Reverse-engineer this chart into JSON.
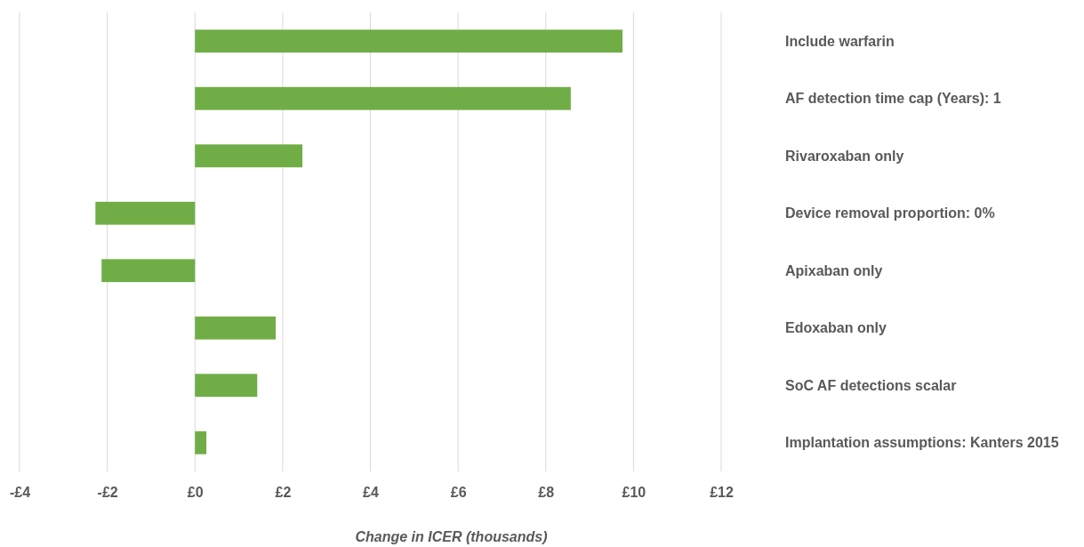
{
  "chart_data": {
    "type": "bar",
    "orientation": "horizontal",
    "xlabel": "Change in ICER (thousands)",
    "categories": [
      "Include warfarin",
      "AF detection time cap (Years): 1",
      "Rivaroxaban only",
      "Device removal proportion: 0%",
      "Apixaban only",
      "Edoxaban only",
      "SoC AF detections scalar",
      "Implantation assumptions: Kanters 2015"
    ],
    "values": [
      9.75,
      8.57,
      2.45,
      -2.27,
      -2.13,
      1.84,
      1.42,
      0.26
    ],
    "color": "#70ad47",
    "xlim": [
      -4,
      12
    ],
    "xticks": [
      {
        "value": -4,
        "label": "-£4"
      },
      {
        "value": -2,
        "label": "-£2"
      },
      {
        "value": 0,
        "label": "£0"
      },
      {
        "value": 2,
        "label": "£2"
      },
      {
        "value": 4,
        "label": "£4"
      },
      {
        "value": 6,
        "label": "£6"
      },
      {
        "value": 8,
        "label": "£8"
      },
      {
        "value": 10,
        "label": "£10"
      },
      {
        "value": 12,
        "label": "£12"
      }
    ],
    "grid": "x"
  }
}
